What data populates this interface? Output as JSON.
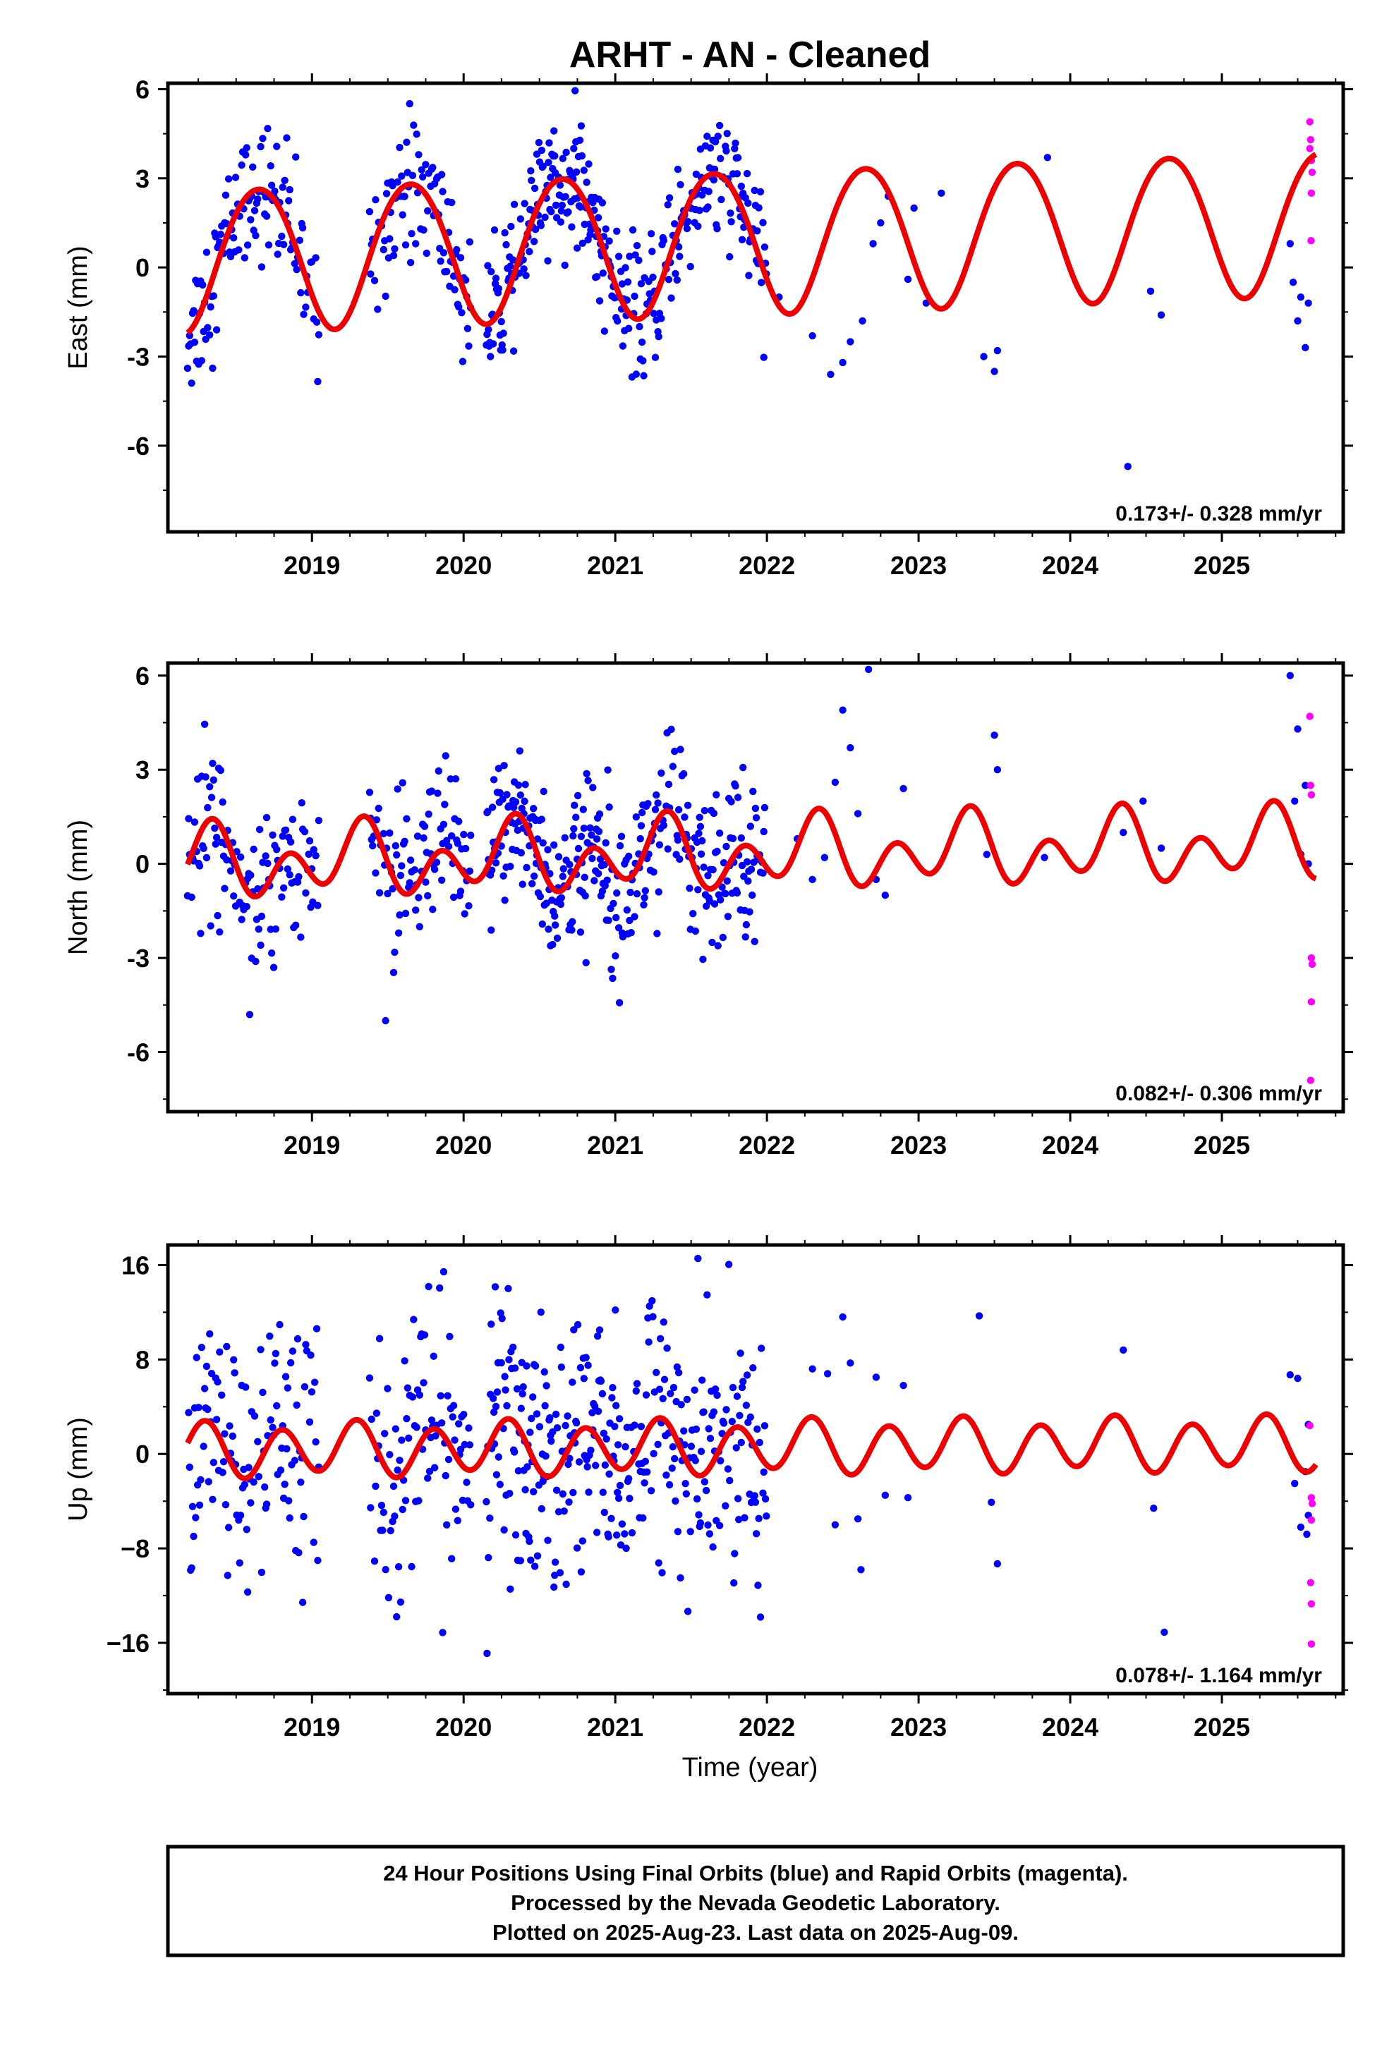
{
  "title": "ARHT  - AN - Cleaned",
  "colors": {
    "final": "#0000ff",
    "rapid": "#ff00ff",
    "fit": "#ee0000"
  },
  "footer": {
    "line1": "24 Hour Positions Using Final Orbits (blue) and Rapid Orbits (magenta).",
    "line2": "Processed by the Nevada Geodetic Laboratory.",
    "line3": "Plotted on 2025-Aug-23. Last data on 2025-Aug-09."
  },
  "chart_data": [
    {
      "type": "scatter",
      "ylabel": "East (mm)",
      "xlabel": "",
      "xlim": [
        2018.05,
        2025.8
      ],
      "ylim": [
        -8.9,
        6.2
      ],
      "yticks": [
        "6",
        "3",
        "0",
        "-3",
        "-6"
      ],
      "ytick_values": [
        6,
        3,
        0,
        -3,
        -6
      ],
      "xticks": [
        "2019",
        "2020",
        "2021",
        "2022",
        "2023",
        "2024",
        "2025"
      ],
      "xtick_values": [
        2019,
        2020,
        2021,
        2022,
        2023,
        2024,
        2025
      ],
      "rate_text": "0.173+/- 0.328 mm/yr",
      "model": {
        "offset": 0.3,
        "rate": 0.173,
        "annual": 2.4,
        "annual_phase": 2018.65,
        "semi": 0.15,
        "semi_phase": 2018.4
      },
      "data_segments": [
        {
          "start": 2018.18,
          "end": 2019.05,
          "step": 0.0066,
          "noise": 1.15
        },
        {
          "start": 2019.38,
          "end": 2020.05,
          "step": 0.0066,
          "noise": 1.15
        },
        {
          "start": 2020.15,
          "end": 2021.05,
          "step": 0.0045,
          "noise": 1.0
        },
        {
          "start": 2021.05,
          "end": 2022.0,
          "step": 0.0055,
          "noise": 1.1
        }
      ],
      "sparse_points": [
        [
          2022.08,
          -1.0
        ],
        [
          2022.3,
          -2.3
        ],
        [
          2022.42,
          -3.6
        ],
        [
          2022.5,
          -3.2
        ],
        [
          2022.55,
          -2.5
        ],
        [
          2022.63,
          -1.8
        ],
        [
          2022.7,
          0.8
        ],
        [
          2022.75,
          1.5
        ],
        [
          2022.8,
          2.4
        ],
        [
          2022.93,
          -0.4
        ],
        [
          2022.97,
          2.0
        ],
        [
          2023.05,
          -1.2
        ],
        [
          2023.15,
          2.5
        ],
        [
          2023.43,
          -3.0
        ],
        [
          2023.5,
          -3.5
        ],
        [
          2023.52,
          -2.8
        ],
        [
          2023.85,
          3.7
        ],
        [
          2024.38,
          -6.7
        ],
        [
          2024.53,
          -0.8
        ],
        [
          2024.6,
          -1.6
        ],
        [
          2025.45,
          0.8
        ],
        [
          2025.47,
          -0.5
        ],
        [
          2025.5,
          -1.8
        ],
        [
          2025.52,
          -1.0
        ],
        [
          2025.55,
          -2.7
        ],
        [
          2025.57,
          -1.2
        ]
      ],
      "rapid_points": [
        [
          2025.58,
          4.9
        ],
        [
          2025.585,
          4.3
        ],
        [
          2025.59,
          3.6
        ],
        [
          2025.595,
          3.2
        ],
        [
          2025.59,
          2.5
        ],
        [
          2025.588,
          0.9
        ],
        [
          2025.58,
          4.0
        ]
      ],
      "fit_end": 2025.62
    },
    {
      "type": "scatter",
      "ylabel": "North (mm)",
      "xlabel": "",
      "xlim": [
        2018.05,
        2025.8
      ],
      "ylim": [
        -7.9,
        6.4
      ],
      "yticks": [
        "6",
        "3",
        "0",
        "-3",
        "-6"
      ],
      "ytick_values": [
        6,
        3,
        0,
        -3,
        -6
      ],
      "xticks": [
        "2019",
        "2020",
        "2021",
        "2022",
        "2023",
        "2024",
        "2025"
      ],
      "xtick_values": [
        2019,
        2020,
        2021,
        2022,
        2023,
        2024,
        2025
      ],
      "rate_text": "0.082+/- 0.306 mm/yr",
      "model": {
        "offset": 0.0,
        "rate": 0.082,
        "annual": 0.6,
        "annual_phase": 2018.3,
        "semi": 0.85,
        "semi_phase": 2018.35
      },
      "data_segments": [
        {
          "start": 2018.18,
          "end": 2019.05,
          "step": 0.0066,
          "noise": 1.35
        },
        {
          "start": 2019.38,
          "end": 2020.05,
          "step": 0.0066,
          "noise": 1.3
        },
        {
          "start": 2020.15,
          "end": 2021.05,
          "step": 0.0045,
          "noise": 1.2
        },
        {
          "start": 2021.05,
          "end": 2022.0,
          "step": 0.0055,
          "noise": 1.3
        }
      ],
      "sparse_points": [
        [
          2022.2,
          0.8
        ],
        [
          2022.3,
          -0.5
        ],
        [
          2022.38,
          0.2
        ],
        [
          2022.45,
          2.6
        ],
        [
          2022.5,
          4.9
        ],
        [
          2022.55,
          3.7
        ],
        [
          2022.6,
          1.6
        ],
        [
          2022.67,
          6.2
        ],
        [
          2022.72,
          -0.5
        ],
        [
          2022.78,
          -1.0
        ],
        [
          2022.9,
          2.4
        ],
        [
          2023.45,
          0.3
        ],
        [
          2023.5,
          4.1
        ],
        [
          2023.52,
          3.0
        ],
        [
          2023.83,
          0.2
        ],
        [
          2024.35,
          1.0
        ],
        [
          2024.48,
          2.0
        ],
        [
          2024.6,
          0.5
        ],
        [
          2025.45,
          6.0
        ],
        [
          2025.48,
          2.0
        ],
        [
          2025.5,
          4.3
        ],
        [
          2025.52,
          0.3
        ],
        [
          2025.55,
          2.5
        ],
        [
          2025.57,
          0.0
        ]
      ],
      "rapid_points": [
        [
          2025.58,
          4.7
        ],
        [
          2025.585,
          2.5
        ],
        [
          2025.59,
          2.2
        ],
        [
          2025.59,
          -3.0
        ],
        [
          2025.595,
          -3.2
        ],
        [
          2025.59,
          -4.4
        ],
        [
          2025.585,
          -6.9
        ]
      ],
      "fit_end": 2025.62
    },
    {
      "type": "scatter",
      "ylabel": "Up (mm)",
      "xlabel": "Time (year)",
      "xlim": [
        2018.05,
        2025.8
      ],
      "ylim": [
        -20.3,
        17.7
      ],
      "yticks": [
        "16",
        "8",
        "0",
        "−8",
        "−16"
      ],
      "ytick_values": [
        16,
        8,
        0,
        -8,
        -16
      ],
      "xticks": [
        "2019",
        "2020",
        "2021",
        "2022",
        "2023",
        "2024",
        "2025"
      ],
      "xtick_values": [
        2019,
        2020,
        2021,
        2022,
        2023,
        2024,
        2025
      ],
      "rate_text": "0.078+/- 1.164 mm/yr",
      "model": {
        "offset": 0.3,
        "rate": 0.078,
        "annual": 0.5,
        "annual_phase": 2018.2,
        "semi": 2.1,
        "semi_phase": 2018.3
      },
      "data_segments": [
        {
          "start": 2018.18,
          "end": 2019.05,
          "step": 0.0066,
          "noise": 5.6
        },
        {
          "start": 2019.38,
          "end": 2020.05,
          "step": 0.0066,
          "noise": 5.6
        },
        {
          "start": 2020.15,
          "end": 2021.05,
          "step": 0.0045,
          "noise": 5.5
        },
        {
          "start": 2021.05,
          "end": 2022.0,
          "step": 0.0055,
          "noise": 5.5
        }
      ],
      "sparse_points": [
        [
          2022.3,
          7.2
        ],
        [
          2022.4,
          6.8
        ],
        [
          2022.45,
          -6.0
        ],
        [
          2022.5,
          11.6
        ],
        [
          2022.55,
          7.7
        ],
        [
          2022.6,
          -5.5
        ],
        [
          2022.62,
          -9.8
        ],
        [
          2022.72,
          6.5
        ],
        [
          2022.78,
          -3.5
        ],
        [
          2022.9,
          5.8
        ],
        [
          2022.93,
          -3.7
        ],
        [
          2023.4,
          11.7
        ],
        [
          2023.48,
          -4.1
        ],
        [
          2023.52,
          -9.3
        ],
        [
          2024.35,
          8.8
        ],
        [
          2024.55,
          -4.6
        ],
        [
          2024.62,
          -15.1
        ],
        [
          2025.45,
          6.7
        ],
        [
          2025.48,
          -2.5
        ],
        [
          2025.5,
          6.4
        ],
        [
          2025.52,
          -6.2
        ],
        [
          2025.55,
          -1.5
        ],
        [
          2025.57,
          -5.2
        ],
        [
          2025.57,
          2.5
        ],
        [
          2025.56,
          -6.8
        ]
      ],
      "rapid_points": [
        [
          2025.58,
          2.4
        ],
        [
          2025.59,
          -3.7
        ],
        [
          2025.595,
          -4.2
        ],
        [
          2025.59,
          -5.6
        ],
        [
          2025.585,
          -10.9
        ],
        [
          2025.59,
          -12.7
        ],
        [
          2025.59,
          -16.1
        ]
      ],
      "fit_end": 2025.62
    }
  ]
}
